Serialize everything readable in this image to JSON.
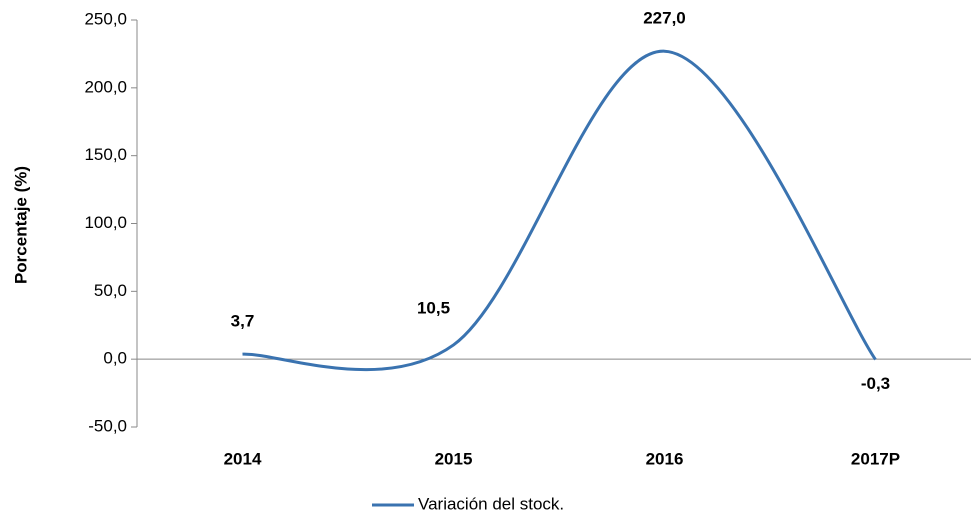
{
  "chart_data": {
    "type": "line",
    "y_axis_label": "Porcentaje (%)",
    "categories": [
      "2014",
      "2015",
      "2016",
      "2017P"
    ],
    "series": [
      {
        "name": "Variación del stock.",
        "color": "#3a73b0",
        "values": [
          3.7,
          10.5,
          227.0,
          -0.3
        ],
        "value_labels": [
          "3,7",
          "10,5",
          "227,0",
          "-0,3"
        ]
      }
    ],
    "ylim": [
      -50,
      250
    ],
    "yticks": [
      {
        "value": -50,
        "label": "-50,0"
      },
      {
        "value": 0,
        "label": "0,0"
      },
      {
        "value": 50,
        "label": "50,0"
      },
      {
        "value": 100,
        "label": "100,0"
      },
      {
        "value": 150,
        "label": "150,0"
      },
      {
        "value": 200,
        "label": "200,0"
      },
      {
        "value": 250,
        "label": "250,0"
      }
    ],
    "smooth": true,
    "legend": "bottom"
  }
}
